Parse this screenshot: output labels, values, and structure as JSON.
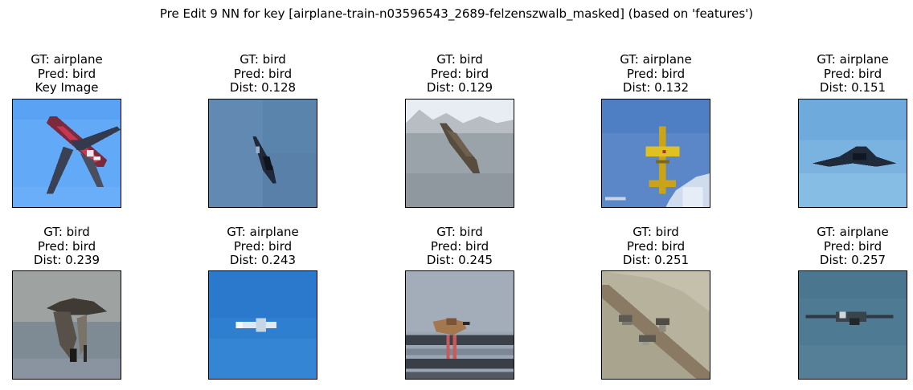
{
  "figure": {
    "title": "Pre Edit 9 NN for key [airplane-train-n03596543_2689-felzenszwalb_masked] (based on 'features')"
  },
  "panels": [
    {
      "gt": "GT: airplane",
      "pred": "Pred: bird",
      "third": "Key Image",
      "scene": "sky-airliner",
      "subject": "airplane"
    },
    {
      "gt": "GT: bird",
      "pred": "Pred: bird",
      "third": "Dist: 0.128",
      "scene": "blue-diagonal-bird",
      "subject": "bird"
    },
    {
      "gt": "GT: bird",
      "pred": "Pred: bird",
      "third": "Dist: 0.129",
      "scene": "grey-diagonal-bird",
      "subject": "bird"
    },
    {
      "gt": "GT: airplane",
      "pred": "Pred: bird",
      "third": "Dist: 0.132",
      "scene": "yellow-plane",
      "subject": "airplane"
    },
    {
      "gt": "GT: airplane",
      "pred": "Pred: bird",
      "third": "Dist: 0.151",
      "scene": "dark-wing-sky",
      "subject": "airplane"
    },
    {
      "gt": "GT: bird",
      "pred": "Pred: bird",
      "third": "Dist: 0.239",
      "scene": "seabird-water",
      "subject": "bird"
    },
    {
      "gt": "GT: airplane",
      "pred": "Pred: bird",
      "third": "Dist: 0.243",
      "scene": "small-plane-blue",
      "subject": "airplane"
    },
    {
      "gt": "GT: bird",
      "pred": "Pred: bird",
      "third": "Dist: 0.245",
      "scene": "shorebird-reflection",
      "subject": "bird"
    },
    {
      "gt": "GT: bird",
      "pred": "Pred: bird",
      "third": "Dist: 0.251",
      "scene": "beach-birds",
      "subject": "bird"
    },
    {
      "gt": "GT: airplane",
      "pred": "Pred: bird",
      "third": "Dist: 0.257",
      "scene": "plane-over-sea",
      "subject": "airplane"
    }
  ]
}
